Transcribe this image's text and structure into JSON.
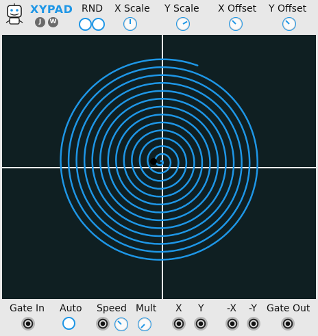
{
  "header": {
    "title": "XYPAD",
    "badges": [
      "J",
      "W"
    ],
    "labels": {
      "rnd": "RND",
      "x_scale": "X Scale",
      "y_scale": "Y Scale",
      "x_offset": "X Offset",
      "y_offset": "Y Offset"
    },
    "icons": {
      "logo": "robot-face-icon"
    }
  },
  "footer": {
    "labels": {
      "gate_in": "Gate In",
      "auto": "Auto",
      "speed": "Speed",
      "mult": "Mult",
      "x": "X",
      "y": "Y",
      "neg_x": "-X",
      "neg_y": "-Y",
      "gate_out": "Gate Out"
    }
  },
  "colors": {
    "accent": "#1e96e6",
    "pad_background": "#0f1f22",
    "crosshair": "#ffffff",
    "cursor": "#000000"
  }
}
